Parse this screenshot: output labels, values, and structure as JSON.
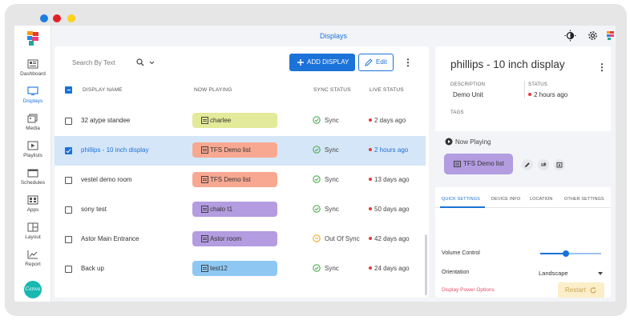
{
  "header": {
    "title": "Displays"
  },
  "sidebar": {
    "items": [
      {
        "label": "Dashboard",
        "icon": "dashboard-icon"
      },
      {
        "label": "Displays",
        "icon": "monitor-icon",
        "active": true
      },
      {
        "label": "Media",
        "icon": "media-icon"
      },
      {
        "label": "Playlists",
        "icon": "playlist-icon"
      },
      {
        "label": "Schedules",
        "icon": "calendar-icon"
      },
      {
        "label": "Apps",
        "icon": "apps-icon"
      },
      {
        "label": "Layout",
        "icon": "layout-icon"
      },
      {
        "label": "Report",
        "icon": "chart-icon"
      }
    ],
    "avatar_text": "Canva"
  },
  "toolbar": {
    "search_placeholder": "Search By Text",
    "add_label": "ADD DISPLAY",
    "edit_label": "Edit"
  },
  "table": {
    "columns": {
      "name": "DISPLAY NAME",
      "playing": "NOW PLAYING",
      "sync": "SYNC STATUS",
      "live": "LIVE STATUS"
    },
    "rows": [
      {
        "name": "32 atype standee",
        "playing": "charlee",
        "pill_color": "#e3ea9a",
        "sync": "Sync",
        "sync_state": "ok",
        "live": "2 days ago",
        "checked": false,
        "selected": false
      },
      {
        "name": "phillips - 10 inch display",
        "playing": "TFS Demo list",
        "pill_color": "#f8a891",
        "sync": "Sync",
        "sync_state": "ok",
        "live": "2 hours ago",
        "checked": true,
        "selected": true
      },
      {
        "name": "vestel demo room",
        "playing": "TFS Demo list",
        "pill_color": "#f8a891",
        "sync": "Sync",
        "sync_state": "ok",
        "live": "13 days ago",
        "checked": false,
        "selected": false
      },
      {
        "name": "sony test",
        "playing": "chalo t1",
        "pill_color": "#b39ce0",
        "sync": "Sync",
        "sync_state": "ok",
        "live": "50 days ago",
        "checked": false,
        "selected": false
      },
      {
        "name": "Astor Main Entrance",
        "playing": "Astor room",
        "pill_color": "#b39ce0",
        "sync": "Out Of Sync",
        "sync_state": "warn",
        "live": "42 days ago",
        "checked": false,
        "selected": false
      },
      {
        "name": "Back up",
        "playing": "test12",
        "pill_color": "#8ec8f2",
        "sync": "Sync",
        "sync_state": "ok",
        "live": "24 days ago",
        "checked": false,
        "selected": false
      }
    ]
  },
  "details": {
    "title": "phillips - 10 inch display",
    "description_label": "DESCRIPTION",
    "description_value": "Demo Unit",
    "status_label": "STATUS",
    "status_value": "2 hours ago",
    "tags_label": "TAGS",
    "now_playing_label": "Now Playing",
    "now_playing_value": "TFS Demo list",
    "tabs": [
      "QUICK SETTINGS",
      "DEVICE INFO",
      "LOCATION",
      "OTHER SETTINGS"
    ],
    "volume_label": "Volume Control",
    "volume_level": 0.42,
    "orientation_label": "Orientation",
    "orientation_value": "Landscape",
    "power_label": "Display Power Options",
    "restart_label": "Restart"
  },
  "colors": {
    "accent": "#1b72d8",
    "ok": "#4caf50",
    "warn": "#f5a623",
    "offline": "#e33a3a"
  }
}
